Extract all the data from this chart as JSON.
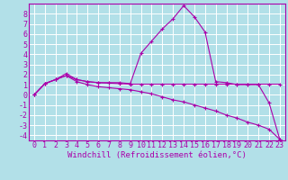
{
  "background_color": "#b2e0e8",
  "grid_color": "#ffffff",
  "line_color": "#aa00aa",
  "marker": "+",
  "xlabel": "Windchill (Refroidissement éolien,°C)",
  "xlabel_fontsize": 6.5,
  "tick_fontsize": 6.0,
  "xlim": [
    -0.5,
    23.5
  ],
  "ylim": [
    -4.5,
    9.0
  ],
  "xticks": [
    0,
    1,
    2,
    3,
    4,
    5,
    6,
    7,
    8,
    9,
    10,
    11,
    12,
    13,
    14,
    15,
    16,
    17,
    18,
    19,
    20,
    21,
    22,
    23
  ],
  "yticks": [
    -4,
    -3,
    -2,
    -1,
    0,
    1,
    2,
    3,
    4,
    5,
    6,
    7,
    8
  ],
  "x": [
    0,
    1,
    2,
    3,
    4,
    5,
    6,
    7,
    8,
    9,
    10,
    11,
    12,
    13,
    14,
    15,
    16,
    17,
    18,
    19,
    20,
    21,
    22,
    23
  ],
  "series": [
    [
      0.0,
      1.1,
      1.5,
      2.1,
      1.5,
      1.3,
      1.2,
      1.2,
      1.2,
      1.1,
      4.1,
      5.3,
      6.5,
      7.5,
      8.8,
      7.7,
      6.2,
      1.3,
      1.2,
      1.0,
      1.0,
      1.0,
      -0.8,
      -4.4
    ],
    [
      0.0,
      1.1,
      1.5,
      1.9,
      1.5,
      1.3,
      1.2,
      1.15,
      1.1,
      1.05,
      1.05,
      1.05,
      1.05,
      1.05,
      1.05,
      1.05,
      1.05,
      1.05,
      1.05,
      1.05,
      1.05,
      1.05,
      1.05,
      1.05
    ],
    [
      0.0,
      1.1,
      1.5,
      1.9,
      1.3,
      1.0,
      0.8,
      0.7,
      0.6,
      0.5,
      0.3,
      0.1,
      -0.2,
      -0.5,
      -0.7,
      -1.0,
      -1.3,
      -1.6,
      -2.0,
      -2.3,
      -2.7,
      -3.0,
      -3.4,
      -4.4
    ]
  ]
}
